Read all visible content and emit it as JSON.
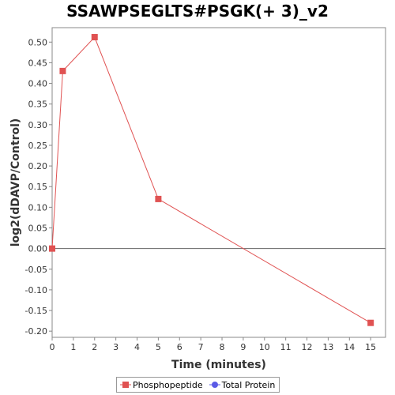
{
  "chart_data": {
    "type": "line",
    "title": "SSAWPSEGLTS#PSGK(+ 3)_v2",
    "xlabel": "Time (minutes)",
    "ylabel": "log2(dDAVP/Control)",
    "xlim": [
      0,
      15.7
    ],
    "ylim": [
      -0.215,
      0.535
    ],
    "xticks": [
      0,
      1,
      2,
      3,
      4,
      5,
      6,
      7,
      8,
      9,
      10,
      11,
      12,
      13,
      14,
      15
    ],
    "yticks": [
      -0.2,
      -0.15,
      -0.1,
      -0.05,
      0.0,
      0.05,
      0.1,
      0.15,
      0.2,
      0.25,
      0.3,
      0.35,
      0.4,
      0.45,
      0.5
    ],
    "ytick_labels": [
      "-0.20",
      "-0.15",
      "-0.10",
      "-0.05",
      "0.00",
      "0.05",
      "0.10",
      "0.15",
      "0.20",
      "0.25",
      "0.30",
      "0.35",
      "0.40",
      "0.45",
      "0.50"
    ],
    "series": [
      {
        "name": "Phosphopeptide",
        "color": "#e05252",
        "marker": "square",
        "x": [
          0,
          0.5,
          2,
          5,
          15
        ],
        "y": [
          0.0,
          0.43,
          0.512,
          0.12,
          -0.18
        ]
      },
      {
        "name": "Total Protein",
        "color": "#5a5ae6",
        "marker": "circle",
        "x": [],
        "y": []
      }
    ],
    "grid": false,
    "zero_line": true,
    "legend_position": "bottom"
  }
}
